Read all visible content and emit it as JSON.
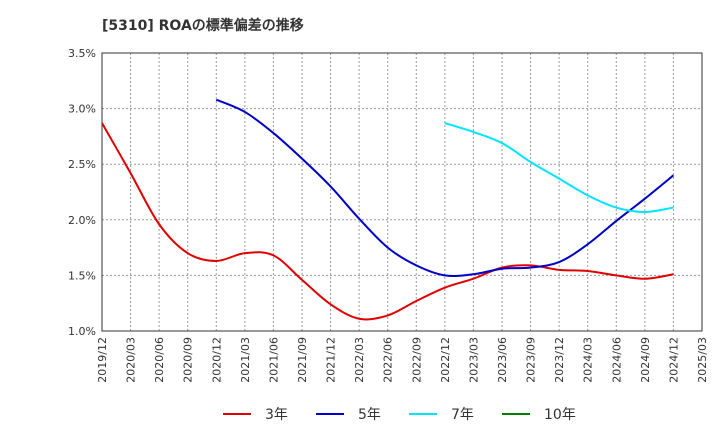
{
  "chart_data": {
    "type": "line",
    "title": "[5310]  ROAの標準偏差の推移",
    "xlabel": "",
    "ylabel": "",
    "x_ticks": [
      "2019/12",
      "2020/03",
      "2020/06",
      "2020/09",
      "2020/12",
      "2021/03",
      "2021/06",
      "2021/09",
      "2021/12",
      "2022/03",
      "2022/06",
      "2022/09",
      "2022/12",
      "2023/03",
      "2023/06",
      "2023/09",
      "2023/12",
      "2024/03",
      "2024/06",
      "2024/09",
      "2024/12",
      "2025/03"
    ],
    "y_ticks": [
      "1.0%",
      "1.5%",
      "2.0%",
      "2.5%",
      "3.0%",
      "3.5%"
    ],
    "ylim": [
      1.0,
      3.5
    ],
    "grid": true,
    "legend_position": "bottom",
    "series": [
      {
        "name": "3年",
        "color": "#e00000",
        "x": [
          "2019/12",
          "2020/03",
          "2020/06",
          "2020/09",
          "2020/12",
          "2021/03",
          "2021/06",
          "2021/09",
          "2021/12",
          "2022/03",
          "2022/06",
          "2022/09",
          "2022/12",
          "2023/03",
          "2023/06",
          "2023/09",
          "2023/12",
          "2024/03",
          "2024/06",
          "2024/09",
          "2024/12"
        ],
        "values": [
          2.87,
          2.42,
          1.96,
          1.7,
          1.63,
          1.7,
          1.68,
          1.46,
          1.24,
          1.11,
          1.14,
          1.27,
          1.39,
          1.47,
          1.57,
          1.59,
          1.55,
          1.54,
          1.5,
          1.47,
          1.51
        ]
      },
      {
        "name": "5年",
        "color": "#0000c8",
        "x": [
          "2020/12",
          "2021/03",
          "2021/06",
          "2021/09",
          "2021/12",
          "2022/03",
          "2022/06",
          "2022/09",
          "2022/12",
          "2023/03",
          "2023/06",
          "2023/09",
          "2023/12",
          "2024/03",
          "2024/06",
          "2024/09",
          "2024/12"
        ],
        "values": [
          3.08,
          2.97,
          2.78,
          2.55,
          2.3,
          2.01,
          1.75,
          1.59,
          1.5,
          1.51,
          1.56,
          1.57,
          1.62,
          1.78,
          1.99,
          2.19,
          2.4
        ]
      },
      {
        "name": "7年",
        "color": "#00e5ff",
        "x": [
          "2022/12",
          "2023/03",
          "2023/06",
          "2023/09",
          "2023/12",
          "2024/03",
          "2024/06",
          "2024/09",
          "2024/12"
        ],
        "values": [
          2.87,
          2.79,
          2.69,
          2.52,
          2.37,
          2.22,
          2.11,
          2.07,
          2.11
        ]
      },
      {
        "name": "10年",
        "color": "#008000",
        "x": [],
        "values": []
      }
    ]
  }
}
